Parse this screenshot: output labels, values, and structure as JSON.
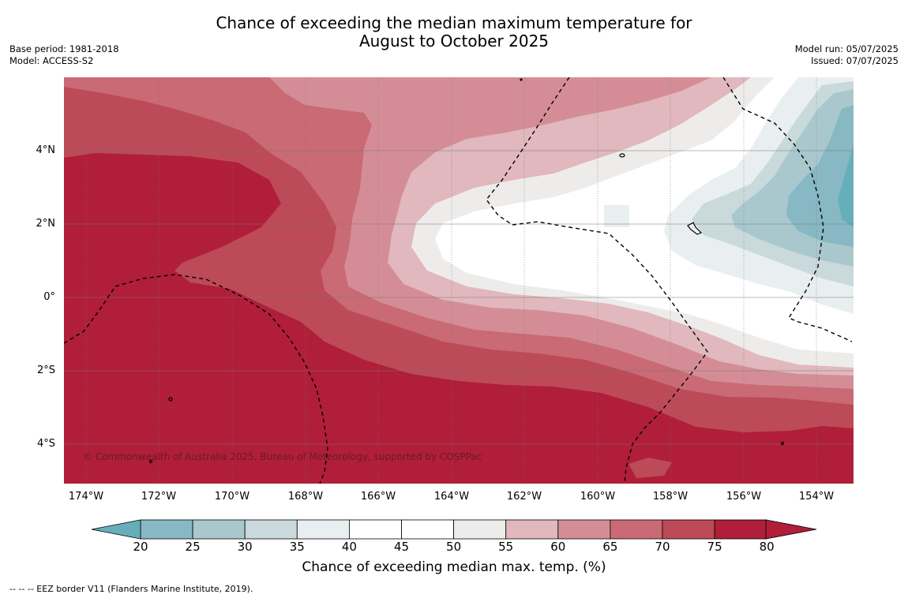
{
  "title_line1": "Chance of exceeding the median maximum temperature for",
  "title_line2": "August to October 2025",
  "meta_left": {
    "base_period": "Base period: 1981-2018",
    "model": "Model: ACCESS-S2"
  },
  "meta_right": {
    "model_run": "Model run: 05/07/2025",
    "issued": "Issued: 07/07/2025"
  },
  "lat_labels": [
    "4°N",
    "2°N",
    "0°",
    "2°S",
    "4°S"
  ],
  "lon_labels": [
    "174°W",
    "172°W",
    "170°W",
    "168°W",
    "166°W",
    "164°W",
    "162°W",
    "160°W",
    "158°W",
    "156°W",
    "154°W"
  ],
  "copyright": "© Commonwealth of Australia 2025, Bureau of Meteorology, supported by COSPPac",
  "colorbar": {
    "ticks": [
      "20",
      "25",
      "30",
      "35",
      "40",
      "45",
      "50",
      "55",
      "60",
      "65",
      "70",
      "75",
      "80"
    ],
    "colors": [
      "#67aebb",
      "#87b8c3",
      "#a9c8ce",
      "#c9d9dc",
      "#e9eff0",
      "#ffffff",
      "#ffffff",
      "#eeeceb",
      "#e0b8bd",
      "#d48d96",
      "#c96a74",
      "#bd4a57",
      "#b01e3a"
    ],
    "label": "Chance of exceeding median max. temp. (%)"
  },
  "footnote": "--  --  -- EEZ border V11 (Flanders Marine Institute, 2019)."
}
